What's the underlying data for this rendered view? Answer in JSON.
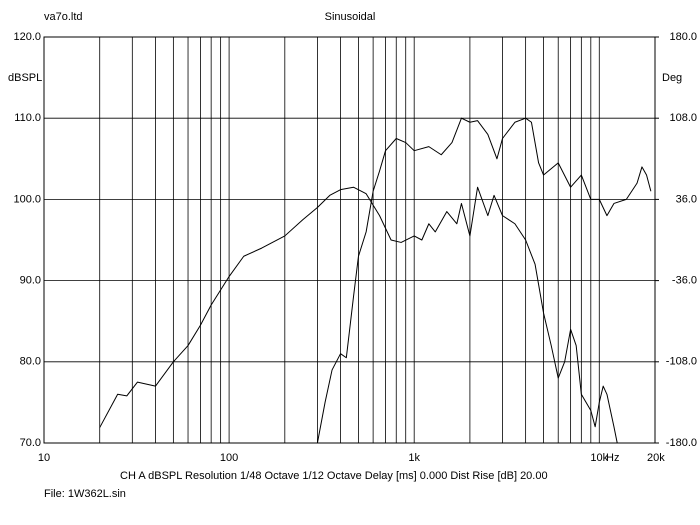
{
  "chart_data": {
    "type": "line",
    "header_left": "va7o.ltd",
    "title": "Sinusoidal",
    "y_label": "dBSPL",
    "y2_label": "Deg",
    "x_label": "Hz",
    "annotations": [
      "CH A   dBSPL   Resolution 1/48 Octave   1/12 Octave   Delay [ms] 0.000   Dist Rise [dB] 20.00",
      "File: 1W362L.sin"
    ],
    "x_log": true,
    "xlim": [
      10,
      20000
    ],
    "xticks": [
      10,
      100,
      {
        "value": 1000,
        "label": "1k"
      },
      {
        "value": 10000,
        "label": "10k"
      },
      {
        "value": 20000,
        "label": "20k"
      }
    ],
    "x_grid_lines": [
      20,
      30,
      40,
      50,
      60,
      70,
      80,
      90,
      200,
      300,
      400,
      500,
      600,
      700,
      800,
      900,
      2000,
      3000,
      4000,
      5000,
      6000,
      7000,
      8000,
      9000
    ],
    "ylim": [
      70,
      120
    ],
    "yticks": [
      {
        "value": 70,
        "label": "70.0"
      },
      {
        "value": 80,
        "label": "80.0"
      },
      {
        "value": 90,
        "label": "90.0"
      },
      {
        "value": 100,
        "label": "100.0"
      },
      {
        "value": 110,
        "label": "110.0"
      },
      {
        "value": 120,
        "label": "120.0"
      }
    ],
    "y2lim": [
      -180,
      180
    ],
    "y2ticks": [
      {
        "value": -180,
        "label": "-180.0"
      },
      {
        "value": -108,
        "label": "-108.0"
      },
      {
        "value": -36,
        "label": "-36.0"
      },
      {
        "value": 36,
        "label": "36.0"
      },
      {
        "value": 108,
        "label": "108.0"
      },
      {
        "value": 180,
        "label": "180.0"
      }
    ],
    "grid": true,
    "series": [
      {
        "color": "#000000",
        "x": [
          20,
          25,
          28,
          32,
          40,
          50,
          60,
          70,
          80,
          100,
          120,
          150,
          200,
          250,
          300,
          350,
          400,
          470,
          550,
          650,
          750,
          850,
          1000,
          1100,
          1200,
          1300,
          1500,
          1700,
          1800,
          2000,
          2200,
          2500,
          2700,
          3000,
          3500,
          4000,
          4500,
          5000,
          5500,
          6000,
          6500,
          7000,
          7500,
          8000,
          9000,
          9500,
          10000,
          10500,
          11000,
          12000,
          12500
        ],
        "values": [
          71.9,
          76,
          75.8,
          77.5,
          77,
          80,
          82,
          84.5,
          87,
          90.5,
          93,
          94,
          95.5,
          97.5,
          99,
          100.5,
          101.2,
          101.5,
          100.7,
          98,
          95,
          94.7,
          95.5,
          95,
          97,
          96,
          98.5,
          97,
          99.5,
          95.5,
          101.5,
          98,
          100.5,
          98,
          97,
          95,
          92,
          86,
          82,
          78,
          80,
          84,
          82,
          76,
          74,
          72,
          75,
          77,
          76,
          72,
          70
        ]
      },
      {
        "color": "#000000",
        "x": [
          300,
          330,
          360,
          400,
          430,
          470,
          500,
          550,
          600,
          650,
          700,
          800,
          900,
          1000,
          1200,
          1400,
          1600,
          1800,
          2000,
          2200,
          2500,
          2800,
          3000,
          3500,
          4000,
          4300,
          4700,
          5000,
          6000,
          7000,
          8000,
          9000,
          10000,
          11000,
          12000,
          14000,
          16000,
          17000,
          18000,
          19000
        ],
        "values": [
          70,
          75,
          79,
          81,
          80.5,
          88,
          93,
          96,
          101,
          103.5,
          106,
          107.5,
          107,
          106,
          106.5,
          105.5,
          107,
          110,
          109.5,
          109.7,
          108,
          105,
          107.5,
          109.5,
          110,
          109.5,
          104.5,
          103,
          104.5,
          101.5,
          103,
          100,
          100,
          98,
          99.5,
          100,
          102,
          104,
          103,
          101
        ]
      }
    ]
  }
}
